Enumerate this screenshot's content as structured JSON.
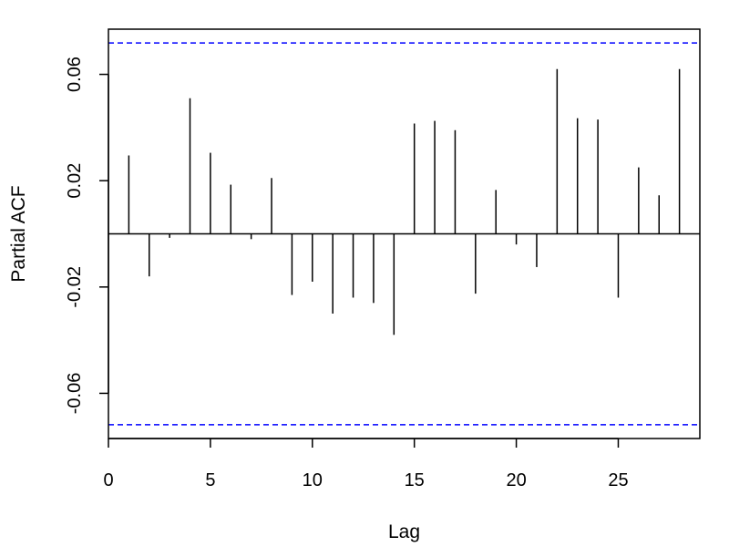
{
  "chart_data": {
    "type": "bar",
    "style": "vertical spikes from zero (correlogram)",
    "title": "",
    "xlabel": "Lag",
    "ylabel": "Partial ACF",
    "xlim": [
      0,
      29
    ],
    "ylim": [
      -0.077,
      0.077
    ],
    "x_ticks": [
      0,
      5,
      10,
      15,
      20,
      25
    ],
    "x_tick_labels": [
      "0",
      "5",
      "10",
      "15",
      "20",
      "25"
    ],
    "y_ticks": [
      -0.06,
      -0.02,
      0.02,
      0.06
    ],
    "y_tick_labels": [
      "-0.06",
      "-0.02",
      "0.02",
      "0.06"
    ],
    "grid": false,
    "zero_line": true,
    "spike_color": "#000000",
    "confidence_band": {
      "value": 0.0718,
      "color": "#0000ff",
      "style": "dashed"
    },
    "lags": [
      1,
      2,
      3,
      4,
      5,
      6,
      7,
      8,
      9,
      10,
      11,
      12,
      13,
      14,
      15,
      16,
      17,
      18,
      19,
      20,
      21,
      22,
      23,
      24,
      25,
      26,
      27,
      28
    ],
    "values": [
      0.0295,
      -0.016,
      -0.0015,
      0.051,
      0.0305,
      0.0185,
      -0.002,
      0.021,
      -0.023,
      -0.018,
      -0.03,
      -0.024,
      -0.026,
      -0.038,
      0.0415,
      0.0425,
      0.039,
      -0.0225,
      0.0165,
      -0.004,
      -0.0125,
      0.062,
      0.0435,
      0.043,
      -0.024,
      0.025,
      0.0145,
      0.062
    ]
  }
}
